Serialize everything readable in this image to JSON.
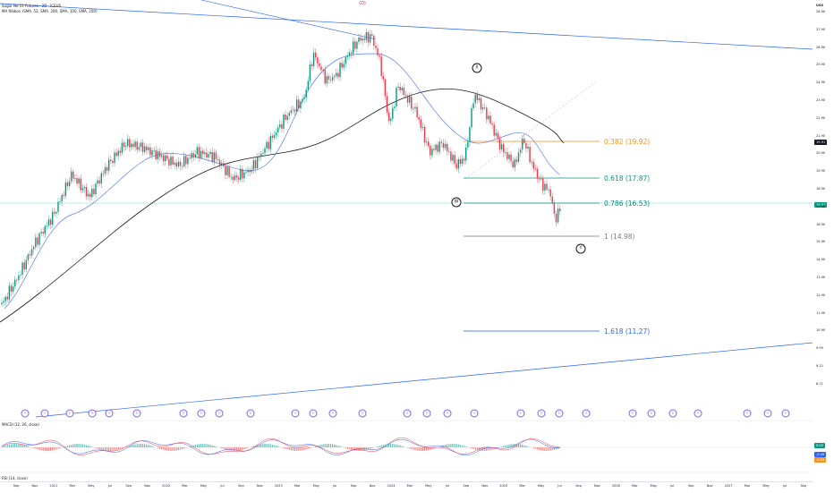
{
  "header": {
    "symbol": "Sugar No 11 Futures · 2D · ICEUS",
    "indicator": "MA Ribbon (SMA, 52, SMA, 200, SMA, 100, SMA, 200)"
  },
  "wave_labels": {
    "top": "(D)",
    "x": "X",
    "w": "W",
    "y": "Y"
  },
  "fib_levels": [
    {
      "label": "0.382 (19.92)",
      "color": "#f7931a"
    },
    {
      "label": "0.618 (17.87)",
      "color": "#089981"
    },
    {
      "label": "0.786 (16.53)",
      "color": "#00897b"
    },
    {
      "label": "1 (14.98)",
      "color": "#787b86"
    },
    {
      "label": "1.618 (11.27)",
      "color": "#2962ff"
    }
  ],
  "yaxis": {
    "currency": "USX",
    "ticks": [
      "28.90",
      "27.90",
      "26.90",
      "25.90",
      "24.90",
      "23.90",
      "22.90",
      "21.90",
      "20.90",
      "19.90",
      "18.90",
      "17.90",
      "16.90",
      "15.90",
      "14.90",
      "13.90",
      "12.90",
      "11.90",
      "10.90",
      "9.90",
      "9.22",
      "8.71"
    ],
    "marker_badge": "19.91",
    "price_badge": "16.57",
    "price_sub": "16.57"
  },
  "xaxis": {
    "labels": [
      "Sep",
      "Nov",
      "2021",
      "Mar",
      "May",
      "Jul",
      "Sep",
      "Nov",
      "2022",
      "Mar",
      "May",
      "Jul",
      "Sep",
      "Nov",
      "2023",
      "Mar",
      "May",
      "Jul",
      "Sep",
      "Nov",
      "2024",
      "Mar",
      "May",
      "Jul",
      "Sep",
      "Nov",
      "2025",
      "Mar",
      "May",
      "Jul",
      "Sep",
      "Nov",
      "2026",
      "Mar",
      "May",
      "Jul",
      "Sep",
      "Nov",
      "2027",
      "Mar",
      "May",
      "Jul",
      "Sep"
    ]
  },
  "macd": {
    "label": "MACD (12, 26, close)",
    "badges": [
      "0.05",
      "-0.49",
      "-0.54"
    ]
  },
  "rsi": {
    "label": "RSI (14, close)"
  },
  "events_label": "D",
  "colors": {
    "up": "#089981",
    "down": "#f23645",
    "ma_fast": "#2962ff",
    "ma_slow": "#1a1a1a",
    "trend": "#2962ff"
  }
}
